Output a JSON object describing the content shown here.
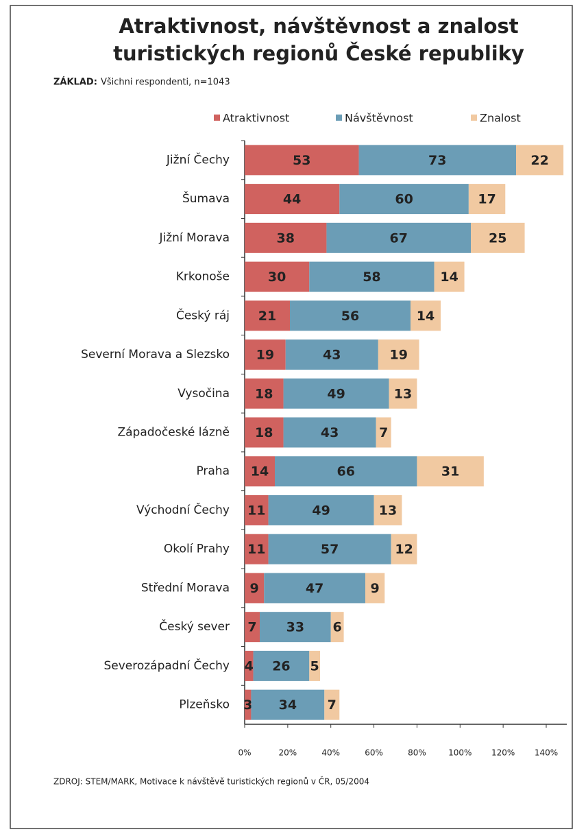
{
  "chart_data": {
    "type": "stacked-bar-horizontal",
    "title": [
      "Atraktivnost, návštěvnost a znalost",
      "turistických regionů České republiky"
    ],
    "subtitle": {
      "label": "ZÁKLAD:",
      "text": "Všichni respondenti, n=1043"
    },
    "source": "ZDROJ: STEM/MARK, Motivace k návštěvě turistických regionů v ČR,  05/2004",
    "categories": [
      "Jižní Čechy",
      "Šumava",
      "Jižní Morava",
      "Krkonoše",
      "Český ráj",
      "Severní Morava a Slezsko",
      "Vysočina",
      "Západočeské lázně",
      "Praha",
      "Východní Čechy",
      "Okolí Prahy",
      "Střední Morava",
      "Český sever",
      "Severozápadní Čechy",
      "Plzeňsko"
    ],
    "series": [
      {
        "name": "Atraktivnost",
        "color": "#d0625f",
        "values": [
          53,
          44,
          38,
          30,
          21,
          19,
          18,
          18,
          14,
          11,
          11,
          9,
          7,
          4,
          3
        ]
      },
      {
        "name": "Návštěvnost",
        "color": "#6b9db6",
        "values": [
          73,
          60,
          67,
          58,
          56,
          43,
          49,
          43,
          66,
          49,
          57,
          47,
          33,
          26,
          34
        ]
      },
      {
        "name": "Znalost",
        "color": "#f1c9a1",
        "values": [
          22,
          17,
          25,
          14,
          14,
          19,
          13,
          7,
          31,
          13,
          12,
          9,
          6,
          5,
          7
        ]
      }
    ],
    "xlim": [
      0,
      140
    ],
    "xticks": [
      {
        "value": 0,
        "label": "0%"
      },
      {
        "value": 20,
        "label": "20%"
      },
      {
        "value": 40,
        "label": "40%"
      },
      {
        "value": 60,
        "label": "60%"
      },
      {
        "value": 80,
        "label": "80%"
      },
      {
        "value": 100,
        "label": "100%"
      },
      {
        "value": 120,
        "label": "120%"
      },
      {
        "value": 140,
        "label": "140%"
      }
    ],
    "legend": "top",
    "grid": false
  }
}
